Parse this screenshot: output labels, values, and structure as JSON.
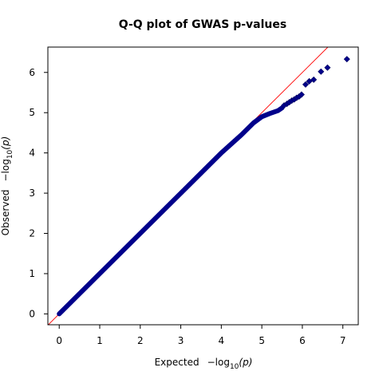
{
  "chart_data": {
    "type": "scatter",
    "title": "Q-Q plot of GWAS p-values",
    "xlabel": {
      "prefix": "Expected",
      "minus": "−log",
      "sub": "10",
      "arg": "(p)"
    },
    "ylabel": {
      "prefix": "Observed",
      "minus": "−log",
      "sub": "10",
      "arg": "(p)"
    },
    "xlim": [
      -0.28,
      7.38
    ],
    "ylim": [
      -0.27,
      6.63
    ],
    "xticks": [
      0,
      1,
      2,
      3,
      4,
      5,
      6,
      7
    ],
    "yticks": [
      0,
      1,
      2,
      3,
      4,
      5,
      6
    ],
    "grid": false,
    "colors": {
      "points_fill": "#00008b",
      "points_edge": "#000060",
      "reference_line": "#ff0000"
    },
    "reference_line": {
      "from": [
        -0.28,
        -0.28
      ],
      "to": [
        6.63,
        6.63
      ]
    },
    "curve": {
      "comment_free": true,
      "x": [
        0,
        1,
        2,
        3,
        4,
        4.5,
        4.8,
        5.0,
        5.2,
        5.4,
        5.5
      ],
      "y": [
        0,
        1,
        2,
        3,
        4,
        4.45,
        4.75,
        4.9,
        4.98,
        5.05,
        5.12
      ]
    },
    "series": [
      {
        "x": [
          5.55,
          5.62,
          5.68,
          5.74,
          5.8,
          5.86,
          5.92,
          5.98,
          6.08,
          6.17,
          6.28,
          6.46,
          6.62,
          7.1
        ],
        "y": [
          5.18,
          5.22,
          5.26,
          5.3,
          5.33,
          5.37,
          5.4,
          5.45,
          5.7,
          5.78,
          5.82,
          6.02,
          6.12,
          6.33
        ]
      }
    ]
  }
}
